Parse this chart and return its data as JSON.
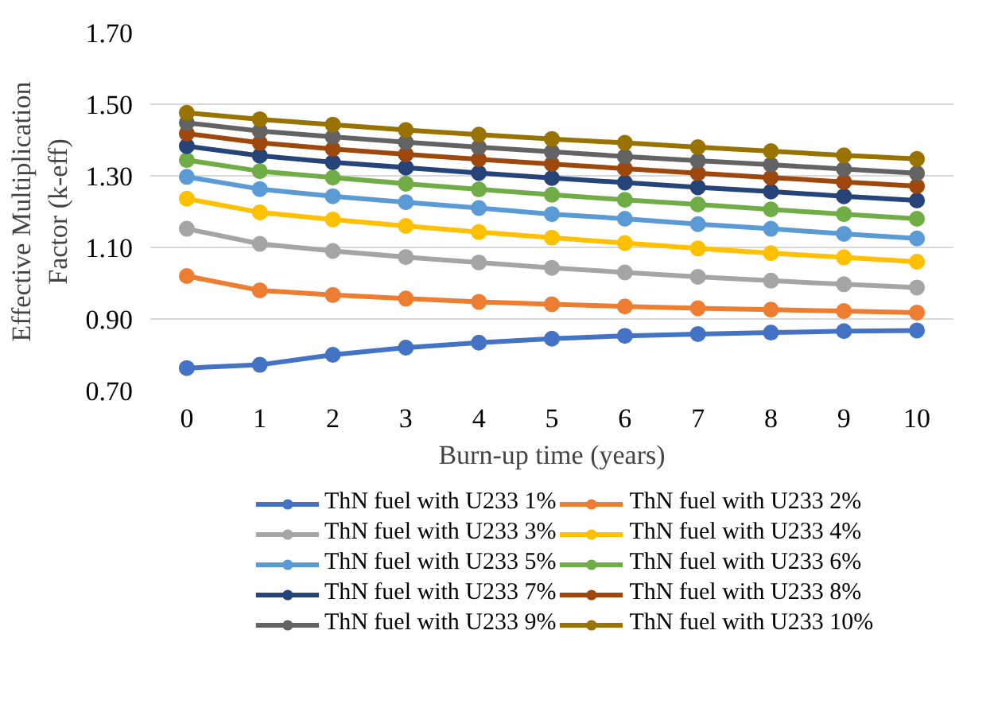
{
  "chart_data": {
    "type": "line",
    "xlabel": "Burn-up time (years)",
    "ylabel": "Effective Multiplication Factor (k-eff)",
    "categories": [
      "0",
      "1",
      "2",
      "3",
      "4",
      "5",
      "6",
      "7",
      "8",
      "9",
      "10"
    ],
    "ylim": [
      0.7,
      1.7
    ],
    "yticks": [
      {
        "value": 0.7,
        "label": "0.70"
      },
      {
        "value": 0.9,
        "label": "0.90"
      },
      {
        "value": 1.1,
        "label": "1.10"
      },
      {
        "value": 1.3,
        "label": "1.30"
      },
      {
        "value": 1.5,
        "label": "1.50"
      },
      {
        "value": 1.7,
        "label": "1.70"
      }
    ],
    "grid": "y",
    "legend": "bottom",
    "marker": "circle",
    "line_style": "solid",
    "series": [
      {
        "name": "ThN fuel with U233 1%",
        "color": "#4472c4",
        "values": [
          0.763,
          0.772,
          0.8,
          0.82,
          0.834,
          0.845,
          0.853,
          0.858,
          0.862,
          0.866,
          0.868
        ]
      },
      {
        "name": "ThN fuel with U233 2%",
        "color": "#ed7d31",
        "values": [
          1.02,
          0.98,
          0.967,
          0.957,
          0.948,
          0.941,
          0.935,
          0.93,
          0.926,
          0.922,
          0.918
        ]
      },
      {
        "name": "ThN fuel with U233 3%",
        "color": "#a5a5a5",
        "values": [
          1.152,
          1.11,
          1.09,
          1.073,
          1.058,
          1.043,
          1.03,
          1.018,
          1.007,
          0.997,
          0.988
        ]
      },
      {
        "name": "ThN fuel with U233 4%",
        "color": "#ffc000",
        "values": [
          1.236,
          1.198,
          1.178,
          1.16,
          1.143,
          1.127,
          1.112,
          1.097,
          1.084,
          1.072,
          1.06
        ]
      },
      {
        "name": "ThN fuel with U233 5%",
        "color": "#5b9bd5",
        "values": [
          1.297,
          1.263,
          1.243,
          1.226,
          1.21,
          1.193,
          1.18,
          1.165,
          1.152,
          1.138,
          1.125
        ]
      },
      {
        "name": "ThN fuel with U233 6%",
        "color": "#70ad47",
        "values": [
          1.344,
          1.313,
          1.295,
          1.278,
          1.262,
          1.247,
          1.233,
          1.22,
          1.206,
          1.193,
          1.18
        ]
      },
      {
        "name": "ThN fuel with U233 7%",
        "color": "#264478",
        "values": [
          1.383,
          1.356,
          1.338,
          1.323,
          1.308,
          1.294,
          1.281,
          1.268,
          1.256,
          1.243,
          1.231
        ]
      },
      {
        "name": "ThN fuel with U233 8%",
        "color": "#9e480e",
        "values": [
          1.418,
          1.392,
          1.375,
          1.36,
          1.346,
          1.333,
          1.32,
          1.307,
          1.295,
          1.283,
          1.271
        ]
      },
      {
        "name": "ThN fuel with U233 9%",
        "color": "#636363",
        "values": [
          1.448,
          1.425,
          1.409,
          1.394,
          1.38,
          1.367,
          1.354,
          1.342,
          1.331,
          1.319,
          1.307
        ]
      },
      {
        "name": "ThN fuel with U233 10%",
        "color": "#997300",
        "values": [
          1.476,
          1.458,
          1.443,
          1.428,
          1.415,
          1.403,
          1.392,
          1.38,
          1.369,
          1.357,
          1.347
        ]
      }
    ]
  }
}
